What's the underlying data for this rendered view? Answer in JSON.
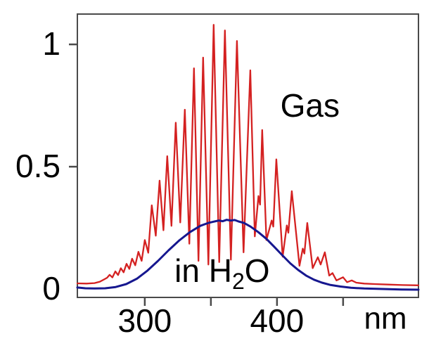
{
  "figure": {
    "background": "#ffffff",
    "frame_color": "#4a4a4a",
    "text_color": "#000000"
  },
  "chart_data": {
    "type": "line",
    "title": "",
    "xlabel": "nm",
    "ylabel": "",
    "xlim": [
      249,
      507
    ],
    "ylim": [
      -0.0345,
      1.124
    ],
    "grid": false,
    "legend_position": "none",
    "x_ticks": [
      {
        "value": 300,
        "label": "300",
        "mark": true
      },
      {
        "value": 350,
        "label": "",
        "mark": true
      },
      {
        "value": 400,
        "label": "400",
        "mark": true
      },
      {
        "value": 450,
        "label": "",
        "mark": true
      }
    ],
    "y_ticks": [
      {
        "value": 0,
        "label": "0",
        "mark": false
      },
      {
        "value": 0.5,
        "label": "0.5",
        "mark": true
      },
      {
        "value": 1,
        "label": "1",
        "mark": true
      }
    ],
    "x_unit_label": {
      "text": "nm",
      "x": 482,
      "y": -0.12
    },
    "series": [
      {
        "id": "gas-line",
        "name": "Gas",
        "color": "#d42121",
        "width": 2.3,
        "x": [
          249,
          256,
          262,
          266,
          269.5,
          271.5,
          273.4,
          275.5,
          277.7,
          279.8,
          281.9,
          284.0,
          286.2,
          288.3,
          290.4,
          292.8,
          295.2,
          297.6,
          300.0,
          302.6,
          305.3,
          308.3,
          311.2,
          314.1,
          317.0,
          320.2,
          323.4,
          326.8,
          330.3,
          333.7,
          337.2,
          340.6,
          344.1,
          348.1,
          352.1,
          356.3,
          360.6,
          365.1,
          369.7,
          374.7,
          379.8,
          383.2,
          386.0,
          387.2,
          388.8,
          392.0,
          396.0,
          397.2,
          399.5,
          404.3,
          407.4,
          408.6,
          411.2,
          417.0,
          419.5,
          420.7,
          422.9,
          427.0,
          430.9,
          433.0,
          436.2,
          439.5,
          442.0,
          445.0,
          450.0,
          453.0,
          456.5,
          460.0,
          466.0,
          474.0,
          484.0,
          495.0,
          507.0
        ],
        "y": [
          0.023,
          0.022,
          0.024,
          0.03,
          0.04,
          0.046,
          0.058,
          0.047,
          0.072,
          0.057,
          0.085,
          0.068,
          0.103,
          0.082,
          0.124,
          0.097,
          0.152,
          0.115,
          0.2,
          0.148,
          0.342,
          0.218,
          0.443,
          0.24,
          0.543,
          0.258,
          0.68,
          0.272,
          0.733,
          0.185,
          0.902,
          0.115,
          0.946,
          0.1,
          1.08,
          0.11,
          1.057,
          0.12,
          1.014,
          0.15,
          0.894,
          0.215,
          0.38,
          0.345,
          0.65,
          0.2,
          0.28,
          0.255,
          0.53,
          0.132,
          0.26,
          0.23,
          0.4,
          0.095,
          0.165,
          0.145,
          0.27,
          0.085,
          0.13,
          0.1,
          0.15,
          0.055,
          0.065,
          0.035,
          0.048,
          0.028,
          0.035,
          0.026,
          0.022,
          0.02,
          0.018,
          0.016,
          0.015
        ]
      },
      {
        "id": "h2o-line",
        "name": "in H2O",
        "color": "#16178f",
        "width": 3,
        "x": [
          249,
          255,
          262,
          270,
          278,
          286,
          294,
          302,
          310,
          318,
          326,
          334,
          342,
          348,
          352,
          356,
          359,
          362,
          365,
          368,
          371,
          375,
          380,
          386,
          392,
          398,
          404,
          410,
          416,
          422,
          428,
          434,
          440,
          448,
          456,
          466,
          480,
          494,
          507
        ],
        "y": [
          0.006,
          0.003,
          0.002,
          0.003,
          0.008,
          0.02,
          0.042,
          0.075,
          0.115,
          0.158,
          0.198,
          0.232,
          0.258,
          0.27,
          0.275,
          0.28,
          0.277,
          0.283,
          0.28,
          0.282,
          0.276,
          0.27,
          0.255,
          0.232,
          0.205,
          0.172,
          0.138,
          0.105,
          0.078,
          0.055,
          0.038,
          0.026,
          0.017,
          0.01,
          0.005,
          0.002,
          0.0,
          -0.002,
          -0.003
        ]
      }
    ],
    "annotations": [
      {
        "id": "gas-label",
        "parts": [
          {
            "t": "Gas"
          }
        ],
        "x": 425,
        "y": 0.75,
        "color": "#000000"
      },
      {
        "id": "in-h2o-label",
        "parts": [
          {
            "t": "in H"
          },
          {
            "t": "2",
            "sub": true
          },
          {
            "t": "O"
          }
        ],
        "x": 358.5,
        "y": 0.075,
        "color": "#000000"
      }
    ]
  }
}
